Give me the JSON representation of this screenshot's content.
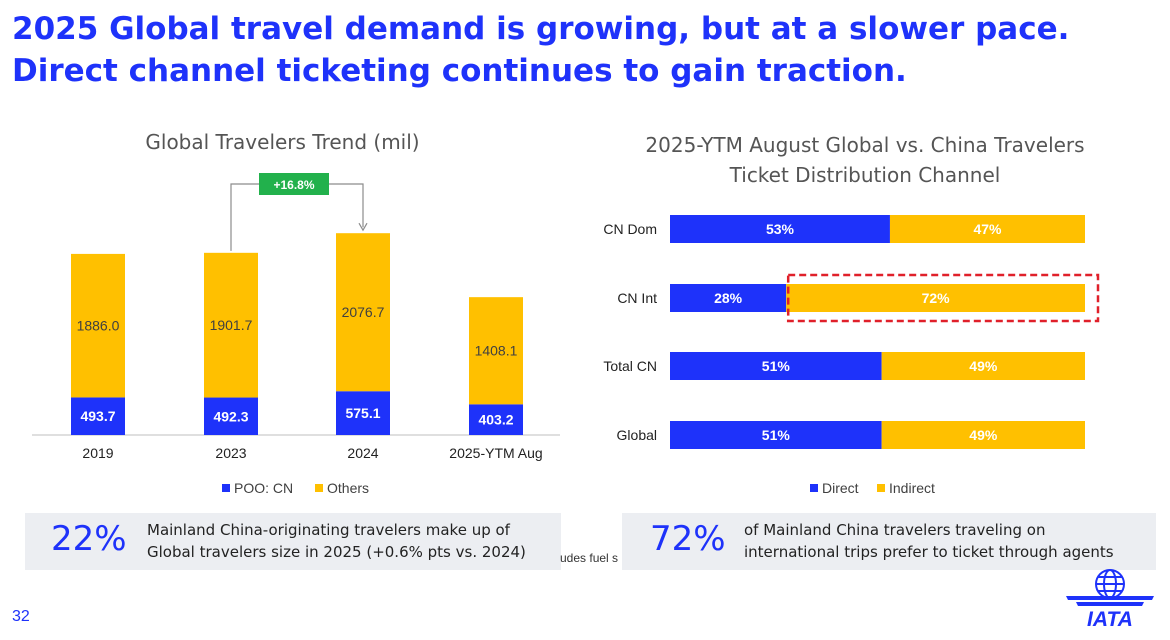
{
  "headline": "2025 Global travel demand is growing, but at a slower pace. Direct channel ticketing continues to gain traction.",
  "colors": {
    "blue": "#1e32fa",
    "yellow": "#ffc000",
    "growth_green": "#22b14c",
    "dashed_red": "#e0202a"
  },
  "left_chart": {
    "title": "Global Travelers Trend (mil)",
    "growth_label": "+16.8%",
    "legend": [
      "POO: CN",
      "Others"
    ]
  },
  "right_chart": {
    "title_line1": "2025-YTM August Global vs. China Travelers",
    "title_line2": "Ticket Distribution Channel",
    "legend": [
      "Direct",
      "Indirect"
    ]
  },
  "chart_data": [
    {
      "type": "bar",
      "stacked": true,
      "title": "Global Travelers Trend (mil)",
      "categories": [
        "2019",
        "2023",
        "2024",
        "2025-YTM Aug"
      ],
      "series": [
        {
          "name": "POO: CN",
          "values": [
            493.7,
            492.3,
            575.1,
            403.2
          ],
          "labels": [
            "493.7",
            "492.3",
            "575.1",
            "403.2"
          ]
        },
        {
          "name": "Others",
          "values": [
            1886.0,
            1901.7,
            2076.7,
            1408.1
          ],
          "labels": [
            "1886.0",
            "1901.7",
            "2076.7",
            "1408.1"
          ]
        }
      ],
      "annotation": "+16.8%",
      "legend_position": "bottom"
    },
    {
      "type": "bar",
      "orientation": "horizontal",
      "stacked": true,
      "percent": true,
      "title": "2025-YTM August Global vs. China Travelers Ticket Distribution Channel",
      "categories": [
        "CN Dom",
        "CN Int",
        "Total CN",
        "Global"
      ],
      "series": [
        {
          "name": "Direct",
          "values": [
            53,
            28,
            51,
            51
          ],
          "labels": [
            "53%",
            "28%",
            "51%",
            "51%"
          ]
        },
        {
          "name": "Indirect",
          "values": [
            47,
            72,
            49,
            49
          ],
          "labels": [
            "47%",
            "72%",
            "49%",
            "49%"
          ]
        }
      ],
      "highlight": "CN Int Indirect",
      "legend_position": "bottom"
    }
  ],
  "callout_left": {
    "pct": "22%",
    "line1": "Mainland China-originating travelers make up of",
    "line2": "Global travelers size in 2025 (+0.6% pts vs. 2024)"
  },
  "callout_right": {
    "pct": "72%",
    "line1": "of Mainland China travelers traveling on",
    "line2": "international trips prefer to ticket through agents"
  },
  "footnote_fragment": "udes fuel s",
  "page_number": "32",
  "logo_text": "IATA"
}
